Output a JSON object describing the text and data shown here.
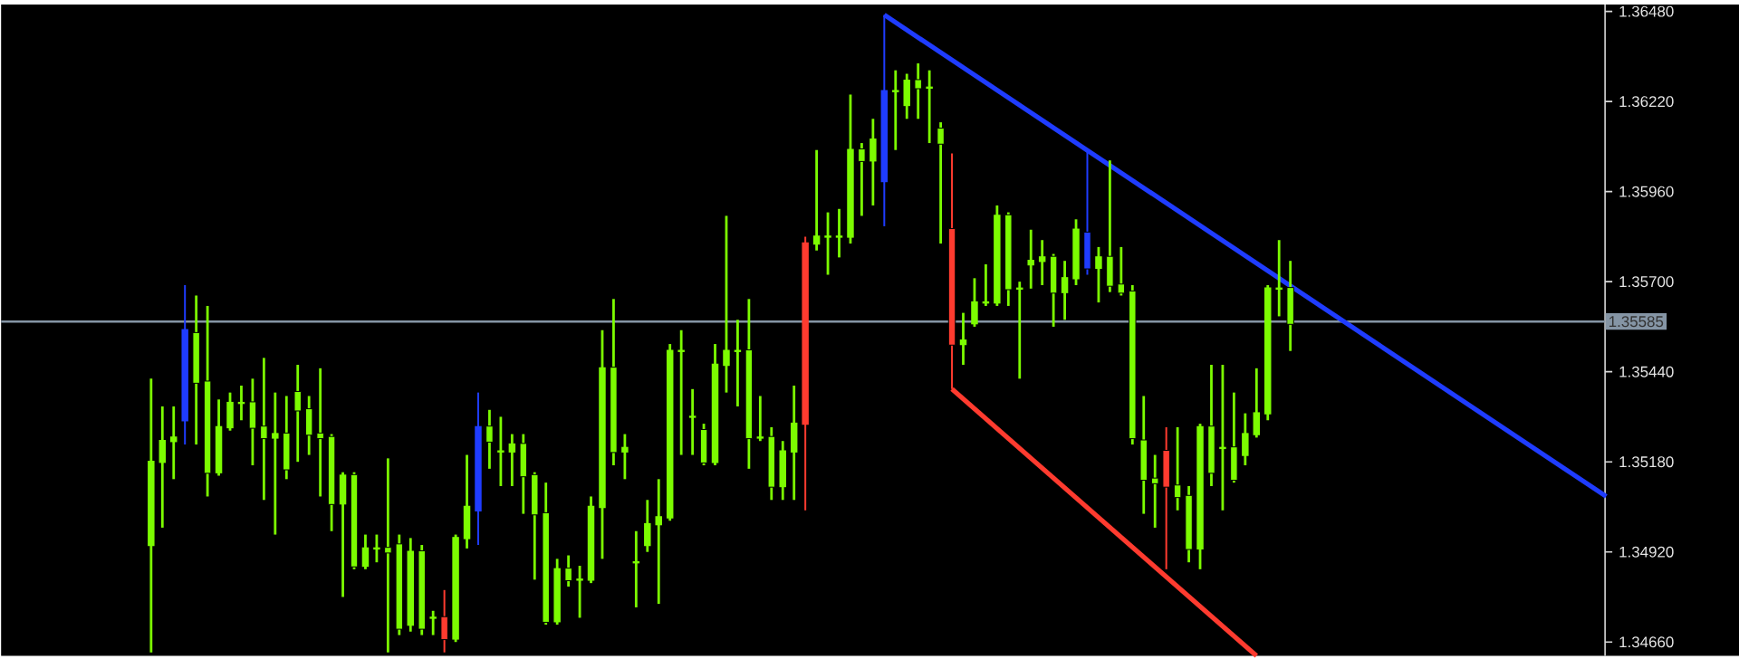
{
  "chart_data": {
    "type": "candlestick",
    "color": "#7cfc00",
    "tick_labels": "y",
    "ylim": [
      1.3462,
      1.365
    ],
    "yticks": [
      {
        "value": 1.3466,
        "label": "1.34660"
      },
      {
        "value": 1.3492,
        "label": "1.34920"
      },
      {
        "value": 1.3518,
        "label": "1.35180"
      },
      {
        "value": 1.3544,
        "label": "1.35440"
      },
      {
        "value": 1.357,
        "label": "1.35700"
      },
      {
        "value": 1.3596,
        "label": "1.35960"
      },
      {
        "value": 1.3622,
        "label": "1.36220"
      },
      {
        "value": 1.3648,
        "label": "1.36480"
      }
    ],
    "categories": [
      null,
      null,
      null,
      null,
      null,
      null,
      null,
      null,
      null,
      null,
      null,
      null,
      null,
      null,
      null,
      null,
      null,
      null,
      null,
      null,
      null,
      null,
      null,
      null,
      null,
      null,
      null,
      null,
      null,
      null,
      null,
      null,
      null,
      null,
      null,
      null,
      null,
      null,
      null,
      null,
      null,
      null,
      null,
      null,
      null,
      null,
      null,
      null,
      null,
      null,
      null,
      null,
      null,
      null,
      null,
      null,
      null,
      null,
      null,
      null,
      null,
      null,
      null,
      null,
      null,
      null,
      null,
      null,
      null,
      null,
      null,
      null,
      null,
      null,
      null,
      null,
      null,
      null,
      null,
      null,
      null,
      null,
      null,
      null,
      null,
      null,
      null,
      null,
      null,
      null,
      null,
      null,
      null,
      null,
      null,
      null,
      null,
      null,
      null,
      null,
      null,
      null,
      null,
      null,
      null,
      null,
      null,
      null,
      null,
      null,
      null,
      null,
      null,
      null,
      null,
      null,
      null,
      null,
      null,
      null,
      null,
      null,
      null,
      null,
      null,
      null,
      null,
      null,
      null,
      null
    ],
    "ohlc": [
      [
        1.3494,
        1.3542,
        1.3463,
        1.3518
      ],
      [
        1.3518,
        1.3534,
        1.3499,
        1.3524
      ],
      [
        1.3524,
        1.3534,
        1.3513,
        1.3525
      ],
      [
        1.353,
        1.3569,
        1.3523,
        1.3556
      ],
      [
        1.3555,
        1.3566,
        1.3523,
        1.3541
      ],
      [
        1.3541,
        1.3563,
        1.3508,
        1.3515
      ],
      [
        1.3515,
        1.3536,
        1.3514,
        1.3528
      ],
      [
        1.3528,
        1.3538,
        1.3527,
        1.3535
      ],
      [
        1.3535,
        1.354,
        1.353,
        1.3535
      ],
      [
        1.3535,
        1.3542,
        1.3517,
        1.3528
      ],
      [
        1.3528,
        1.3548,
        1.3507,
        1.3525
      ],
      [
        1.3525,
        1.3538,
        1.3497,
        1.3526
      ],
      [
        1.3526,
        1.3537,
        1.3513,
        1.3516
      ],
      [
        1.3538,
        1.3546,
        1.3518,
        1.3533
      ],
      [
        1.3533,
        1.3537,
        1.352,
        1.3526
      ],
      [
        1.3526,
        1.3545,
        1.3508,
        1.3525
      ],
      [
        1.3525,
        1.3526,
        1.3498,
        1.3506
      ],
      [
        1.3506,
        1.3515,
        1.3479,
        1.3514
      ],
      [
        1.3514,
        1.3515,
        1.3487,
        1.3488
      ],
      [
        1.3488,
        1.3497,
        1.3487,
        1.3493
      ],
      [
        1.3493,
        1.3497,
        1.3489,
        1.3493
      ],
      [
        1.3493,
        1.3519,
        1.3463,
        1.3492
      ],
      [
        1.3494,
        1.3497,
        1.3468,
        1.347
      ],
      [
        1.3471,
        1.3496,
        1.3469,
        1.3492
      ],
      [
        1.3492,
        1.3494,
        1.3468,
        1.347
      ],
      [
        1.3473,
        1.3475,
        1.3468,
        1.3473
      ],
      [
        1.3473,
        1.3481,
        1.3463,
        1.3467
      ],
      [
        1.3467,
        1.3497,
        1.3466,
        1.3496
      ],
      [
        1.3496,
        1.352,
        1.3493,
        1.3505
      ],
      [
        1.3504,
        1.3538,
        1.3494,
        1.3528
      ],
      [
        1.3528,
        1.3533,
        1.3516,
        1.3524
      ],
      [
        1.3521,
        1.3531,
        1.3511,
        1.3521
      ],
      [
        1.3521,
        1.3526,
        1.3511,
        1.3523
      ],
      [
        1.3523,
        1.3526,
        1.3503,
        1.3514
      ],
      [
        1.3514,
        1.3515,
        1.3484,
        1.3503
      ],
      [
        1.3503,
        1.3512,
        1.3471,
        1.3472
      ],
      [
        1.3472,
        1.349,
        1.3471,
        1.3487
      ],
      [
        1.3487,
        1.3491,
        1.3482,
        1.3484
      ],
      [
        1.3484,
        1.3488,
        1.3473,
        1.3484
      ],
      [
        1.3484,
        1.3508,
        1.3483,
        1.3505
      ],
      [
        1.3505,
        1.3556,
        1.349,
        1.3545
      ],
      [
        1.3545,
        1.3565,
        1.3517,
        1.3521
      ],
      [
        1.3521,
        1.3526,
        1.3513,
        1.3522
      ],
      [
        1.3489,
        1.3498,
        1.3476,
        1.3489
      ],
      [
        1.3494,
        1.3507,
        1.3492,
        1.35
      ],
      [
        1.35,
        1.3513,
        1.3477,
        1.3502
      ],
      [
        1.3502,
        1.3552,
        1.3501,
        1.355
      ],
      [
        1.355,
        1.3556,
        1.352,
        1.355
      ],
      [
        1.3531,
        1.3539,
        1.352,
        1.3531
      ],
      [
        1.3527,
        1.3529,
        1.3517,
        1.3518
      ],
      [
        1.3518,
        1.3552,
        1.3517,
        1.3546
      ],
      [
        1.3546,
        1.3589,
        1.3538,
        1.355
      ],
      [
        1.355,
        1.3559,
        1.3534,
        1.355
      ],
      [
        1.355,
        1.3565,
        1.3516,
        1.3525
      ],
      [
        1.3525,
        1.3537,
        1.3524,
        1.3525
      ],
      [
        1.3525,
        1.3528,
        1.3507,
        1.3511
      ],
      [
        1.3511,
        1.3524,
        1.3507,
        1.3521
      ],
      [
        1.3521,
        1.354,
        1.3507,
        1.3529
      ],
      [
        1.3529,
        1.3583,
        1.3504,
        1.3581
      ],
      [
        1.3581,
        1.3608,
        1.3579,
        1.3583
      ],
      [
        1.3583,
        1.359,
        1.3572,
        1.3583
      ],
      [
        1.3583,
        1.3591,
        1.3577,
        1.3583
      ],
      [
        1.3583,
        1.3624,
        1.3581,
        1.3608
      ],
      [
        1.3608,
        1.361,
        1.3589,
        1.3605
      ],
      [
        1.3605,
        1.3617,
        1.3592,
        1.3611
      ],
      [
        1.3599,
        1.3647,
        1.3586,
        1.3625
      ],
      [
        1.3625,
        1.3631,
        1.3608,
        1.3625
      ],
      [
        1.3621,
        1.363,
        1.3617,
        1.3628
      ],
      [
        1.3628,
        1.3633,
        1.3617,
        1.3626
      ],
      [
        1.3626,
        1.3631,
        1.361,
        1.3626
      ],
      [
        1.3614,
        1.3616,
        1.3581,
        1.361
      ],
      [
        1.3585,
        1.3607,
        1.3539,
        1.3552
      ],
      [
        1.3552,
        1.3561,
        1.3546,
        1.3553
      ],
      [
        1.3558,
        1.3571,
        1.3557,
        1.3564
      ],
      [
        1.3564,
        1.3575,
        1.3563,
        1.3564
      ],
      [
        1.3564,
        1.3592,
        1.3563,
        1.3589
      ],
      [
        1.3589,
        1.359,
        1.3563,
        1.3568
      ],
      [
        1.3568,
        1.357,
        1.3542,
        1.3568
      ],
      [
        1.3575,
        1.3585,
        1.3568,
        1.3576
      ],
      [
        1.3576,
        1.3582,
        1.3569,
        1.3577
      ],
      [
        1.3577,
        1.3578,
        1.3557,
        1.3567
      ],
      [
        1.3567,
        1.3576,
        1.3559,
        1.3571
      ],
      [
        1.3571,
        1.3588,
        1.3569,
        1.3585
      ],
      [
        1.3584,
        1.3608,
        1.3572,
        1.3574
      ],
      [
        1.3574,
        1.358,
        1.3564,
        1.3577
      ],
      [
        1.3577,
        1.3605,
        1.3567,
        1.3569
      ],
      [
        1.3569,
        1.358,
        1.3566,
        1.3567
      ],
      [
        1.3567,
        1.3569,
        1.3523,
        1.3525
      ],
      [
        1.3524,
        1.3537,
        1.3503,
        1.3513
      ],
      [
        1.3513,
        1.352,
        1.3499,
        1.3512
      ],
      [
        1.3521,
        1.3528,
        1.3487,
        1.3511
      ],
      [
        1.3511,
        1.3528,
        1.3504,
        1.3508
      ],
      [
        1.3508,
        1.3511,
        1.3489,
        1.3493
      ],
      [
        1.3493,
        1.3529,
        1.3487,
        1.3528
      ],
      [
        1.3528,
        1.3546,
        1.3511,
        1.3515
      ],
      [
        1.3522,
        1.3546,
        1.3504,
        1.3522
      ],
      [
        1.3522,
        1.3538,
        1.3512,
        1.3513
      ],
      [
        1.352,
        1.3532,
        1.3517,
        1.3526
      ],
      [
        1.3526,
        1.3545,
        1.3525,
        1.3532
      ],
      [
        1.3532,
        1.3569,
        1.353,
        1.3568
      ],
      [
        1.3568,
        1.3582,
        1.356,
        1.3568
      ],
      [
        1.3568,
        1.3576,
        1.355,
        1.3558
      ],
      null,
      null,
      null,
      null,
      null,
      null,
      null,
      null,
      null,
      null,
      null,
      null,
      null,
      null,
      null,
      null,
      null,
      null,
      null,
      null,
      null,
      null,
      null,
      null,
      null,
      null,
      null,
      null
    ],
    "colors": [
      "#7cfc00",
      "#7cfc00",
      "#7cfc00",
      "#1f3cff",
      "#7cfc00",
      "#7cfc00",
      "#7cfc00",
      "#7cfc00",
      "#7cfc00",
      "#7cfc00",
      "#7cfc00",
      "#7cfc00",
      "#7cfc00",
      "#7cfc00",
      "#7cfc00",
      "#7cfc00",
      "#7cfc00",
      "#7cfc00",
      "#7cfc00",
      "#7cfc00",
      "#7cfc00",
      "#7cfc00",
      "#7cfc00",
      "#7cfc00",
      "#7cfc00",
      "#7cfc00",
      "#ff3b2f",
      "#7cfc00",
      "#7cfc00",
      "#1f3cff",
      "#7cfc00",
      "#7cfc00",
      "#7cfc00",
      "#7cfc00",
      "#7cfc00",
      "#7cfc00",
      "#7cfc00",
      "#7cfc00",
      "#7cfc00",
      "#7cfc00",
      "#7cfc00",
      "#7cfc00",
      "#7cfc00",
      "#7cfc00",
      "#7cfc00",
      "#7cfc00",
      "#7cfc00",
      "#7cfc00",
      "#7cfc00",
      "#7cfc00",
      "#7cfc00",
      "#7cfc00",
      "#7cfc00",
      "#7cfc00",
      "#7cfc00",
      "#7cfc00",
      "#7cfc00",
      "#7cfc00",
      "#ff3b2f",
      "#7cfc00",
      "#7cfc00",
      "#7cfc00",
      "#7cfc00",
      "#7cfc00",
      "#7cfc00",
      "#1f3cff",
      "#7cfc00",
      "#7cfc00",
      "#7cfc00",
      "#7cfc00",
      "#7cfc00",
      "#ff3b2f",
      "#7cfc00",
      "#7cfc00",
      "#7cfc00",
      "#7cfc00",
      "#7cfc00",
      "#7cfc00",
      "#7cfc00",
      "#7cfc00",
      "#7cfc00",
      "#7cfc00",
      "#7cfc00",
      "#1f3cff",
      "#7cfc00",
      "#7cfc00",
      "#7cfc00",
      "#7cfc00",
      "#7cfc00",
      "#7cfc00",
      "#ff3b2f",
      "#7cfc00",
      "#7cfc00",
      "#7cfc00",
      "#7cfc00",
      "#7cfc00",
      "#7cfc00",
      "#7cfc00",
      "#7cfc00",
      "#7cfc00",
      "#7cfc00",
      "#7cfc00",
      null,
      null,
      null,
      null,
      null,
      null,
      null,
      null,
      null,
      null,
      null,
      null,
      null,
      null,
      null,
      null,
      null,
      null,
      null,
      null,
      null,
      null,
      null,
      null,
      null,
      null,
      null,
      null
    ],
    "series": [
      {
        "type": "line",
        "color": "#1f3cff",
        "values": [
          null,
          null,
          null,
          null,
          null,
          null,
          null,
          null,
          null,
          null,
          null,
          null,
          null,
          null,
          null,
          null,
          null,
          null,
          null,
          null,
          null,
          null,
          null,
          null,
          null,
          null,
          null,
          null,
          null,
          null,
          null,
          null,
          null,
          null,
          null,
          null,
          null,
          null,
          null,
          null,
          null,
          null,
          null,
          null,
          null,
          null,
          null,
          null,
          null,
          null,
          null,
          null,
          null,
          null,
          null,
          null,
          null,
          null,
          null,
          null,
          null,
          null,
          null,
          null,
          null,
          1.3647,
          null,
          null,
          null,
          null,
          null,
          null,
          null,
          null,
          null,
          null,
          null,
          null,
          null,
          null,
          null,
          null,
          null,
          null,
          null,
          null,
          null,
          null,
          null,
          null,
          null,
          null,
          null,
          null,
          null,
          null,
          null,
          null,
          null,
          null,
          null,
          null,
          null,
          null,
          null,
          null,
          null,
          null,
          null,
          null,
          null,
          null,
          null,
          null,
          null,
          null,
          null,
          null,
          null,
          null,
          null,
          null,
          null,
          null,
          null,
          null,
          null,
          null,
          null,
          1.3508
        ]
      },
      {
        "type": "line",
        "color": "#ff3b2f",
        "values": [
          null,
          null,
          null,
          null,
          null,
          null,
          null,
          null,
          null,
          null,
          null,
          null,
          null,
          null,
          null,
          null,
          null,
          null,
          null,
          null,
          null,
          null,
          null,
          null,
          null,
          null,
          null,
          null,
          null,
          null,
          null,
          null,
          null,
          null,
          null,
          null,
          null,
          null,
          null,
          null,
          null,
          null,
          null,
          null,
          null,
          null,
          null,
          null,
          null,
          null,
          null,
          null,
          null,
          null,
          null,
          null,
          null,
          null,
          null,
          null,
          null,
          null,
          null,
          null,
          null,
          null,
          null,
          null,
          null,
          null,
          null,
          1.3539,
          null,
          null,
          null,
          null,
          null,
          null,
          null,
          null,
          null,
          null,
          null,
          null,
          null,
          null,
          null,
          null,
          null,
          null,
          null,
          null,
          null,
          null,
          null,
          null,
          null,
          null,
          1.3462,
          null,
          null,
          null,
          null,
          null,
          null,
          null,
          null,
          null,
          null,
          null,
          null,
          null,
          null,
          null,
          null,
          null,
          null,
          null,
          null,
          null,
          null,
          null,
          null,
          null,
          null,
          null,
          null,
          null,
          null,
          null
        ]
      }
    ],
    "ref_lines": [
      {
        "axis": "y",
        "value": 1.35585,
        "label": "1.35585",
        "color": "#8595a5"
      }
    ]
  }
}
